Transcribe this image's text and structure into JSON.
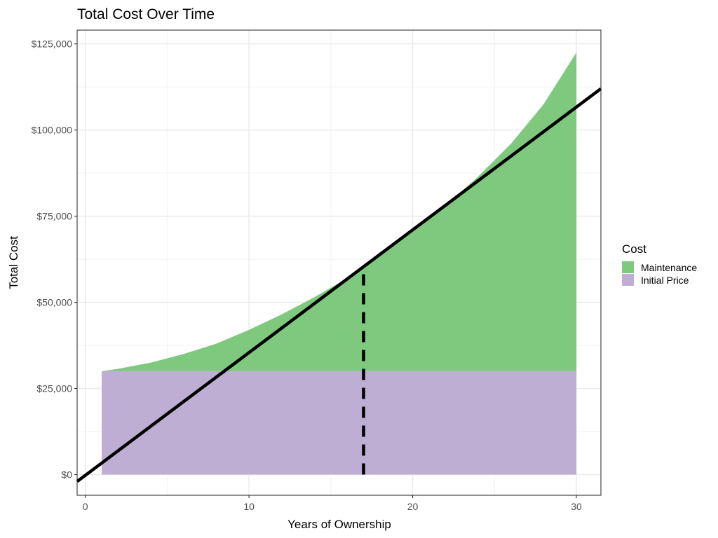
{
  "chart_data": {
    "type": "area",
    "title": "Total Cost Over Time",
    "xlabel": "Years of Ownership",
    "ylabel": "Total Cost",
    "xlim": [
      -0.5,
      31.5
    ],
    "ylim": [
      -6000,
      129000
    ],
    "x_ticks": [
      0,
      10,
      20,
      30
    ],
    "x_tick_labels": [
      "0",
      "10",
      "20",
      "30"
    ],
    "y_ticks": [
      0,
      25000,
      50000,
      75000,
      100000,
      125000
    ],
    "y_tick_labels": [
      "$0",
      "$25,000",
      "$50,000",
      "$75,000",
      "$100,000",
      "$125,000"
    ],
    "grid": true,
    "legend": {
      "title": "Cost",
      "position": "right",
      "entries": [
        {
          "label": "Maintenance",
          "color": "#7fc97f"
        },
        {
          "label": "Initial Price",
          "color": "#beaed4"
        }
      ]
    },
    "series": [
      {
        "name": "Initial Price",
        "color": "#beaed4",
        "x": [
          1,
          30
        ],
        "values": [
          30000,
          30000
        ]
      },
      {
        "name": "Maintenance",
        "color": "#7fc97f",
        "x": [
          1,
          2,
          4,
          6,
          8,
          10,
          12,
          14,
          16,
          17,
          18,
          20,
          22,
          24,
          26,
          28,
          30
        ],
        "values": [
          30000,
          30700,
          32500,
          35000,
          38000,
          42000,
          46500,
          51500,
          57000,
          60500,
          64000,
          70500,
          78000,
          86500,
          96000,
          107500,
          122500
        ]
      }
    ],
    "lines": [
      {
        "type": "abline",
        "x": [
          -0.5,
          31.5
        ],
        "values": [
          -2000,
          112000
        ],
        "color": "#000000"
      },
      {
        "type": "vline",
        "x": 17,
        "values": [
          0,
          60500
        ],
        "style": "dashed",
        "color": "#000000"
      }
    ]
  }
}
